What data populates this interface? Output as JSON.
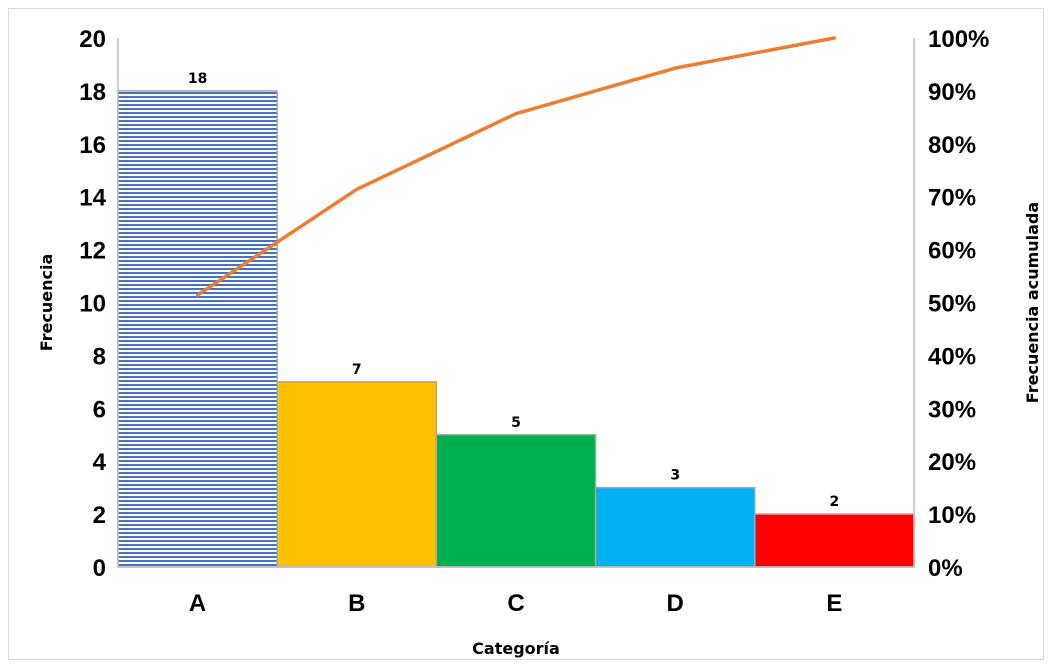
{
  "chart_data": {
    "type": "bar",
    "categories": [
      "A",
      "B",
      "C",
      "D",
      "E"
    ],
    "series": [
      {
        "values": [
          18,
          7,
          5,
          3,
          2
        ],
        "axis": "left",
        "type": "bar"
      },
      {
        "values": [
          51.4,
          71.4,
          85.7,
          94.3,
          100
        ],
        "axis": "right",
        "type": "line"
      }
    ],
    "data_labels": [
      "18",
      "7",
      "5",
      "3",
      "2"
    ],
    "bar_colors": [
      "#4472c4",
      "#ffc000",
      "#00b050",
      "#00b0f0",
      "#ff0000"
    ],
    "bar_pattern_first": "horizontal-stripes",
    "line_color": "#ed7d31",
    "xlabel": "Categoría",
    "ylabel": "Frecuencia",
    "y2label": "Frecuencia acumulada",
    "ylim": [
      0,
      20
    ],
    "y2lim": [
      0,
      100
    ],
    "y_ticks": [
      "0",
      "2",
      "4",
      "6",
      "8",
      "10",
      "12",
      "14",
      "16",
      "18",
      "20"
    ],
    "y2_ticks": [
      "0%",
      "10%",
      "20%",
      "30%",
      "40%",
      "50%",
      "60%",
      "70%",
      "80%",
      "90%",
      "100%"
    ],
    "grid": false,
    "legend": "none"
  }
}
